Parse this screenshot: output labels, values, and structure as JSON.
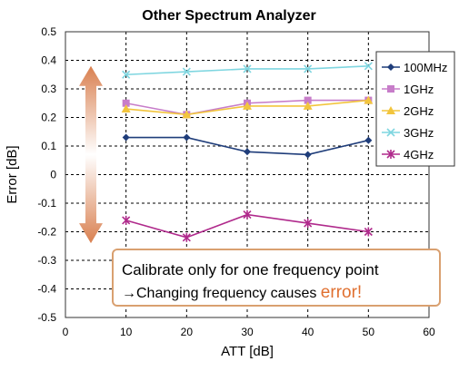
{
  "chart_data": {
    "type": "line",
    "title": "Other Spectrum Analyzer",
    "xlabel": "ATT [dB]",
    "ylabel": "Error [dB]",
    "xlim": [
      0,
      60
    ],
    "ylim": [
      -0.5,
      0.5
    ],
    "x_ticks": [
      "0",
      "10",
      "20",
      "30",
      "40",
      "50",
      "60"
    ],
    "y_ticks": [
      "0.5",
      "0.4",
      "0.3",
      "0.2",
      "0.1",
      "0",
      "-0.1",
      "-0.2",
      "-0.3",
      "-0.4",
      "-0.5"
    ],
    "grid": true,
    "legend_position": "right",
    "x": [
      10,
      20,
      30,
      40,
      50
    ],
    "series": [
      {
        "name": "100MHz",
        "values": [
          0.13,
          0.13,
          0.08,
          0.07,
          0.12
        ],
        "color": "#1f3d7a",
        "marker": "diamond"
      },
      {
        "name": "1GHz",
        "values": [
          0.25,
          0.21,
          0.25,
          0.26,
          0.26
        ],
        "color": "#c77dc9",
        "marker": "square"
      },
      {
        "name": "2GHz",
        "values": [
          0.23,
          0.21,
          0.24,
          0.24,
          0.26
        ],
        "color": "#f2c53d",
        "marker": "triangle"
      },
      {
        "name": "3GHz",
        "values": [
          0.35,
          0.36,
          0.37,
          0.37,
          0.38
        ],
        "color": "#7fd6e0",
        "marker": "x"
      },
      {
        "name": "4GHz",
        "values": [
          -0.16,
          -0.22,
          -0.14,
          -0.17,
          -0.2
        ],
        "color": "#b02a8c",
        "marker": "star"
      }
    ],
    "annotation": {
      "line1": "Calibrate only for one frequency point",
      "line2_prefix": "→Changing frequency causes ",
      "line2_highlight": "error!",
      "highlight_color": "#e07030",
      "border_color": "#d9a070"
    },
    "arrow_color": "#d98050"
  }
}
